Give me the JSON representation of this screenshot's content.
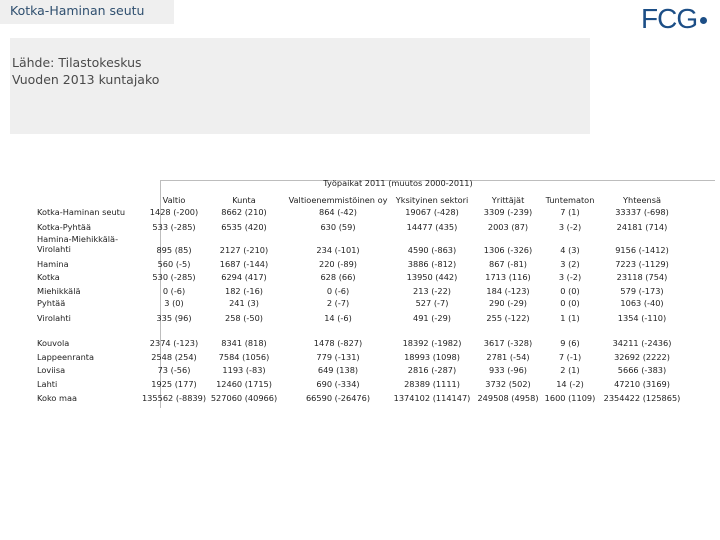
{
  "title": "Kotka-Haminan seutu",
  "logo": "FCG",
  "source": {
    "line1": "Lähde: Tilastokeskus",
    "line2": "Vuoden 2013 kuntajako"
  },
  "table": {
    "caption": "Työpaikat 2011 (muutos 2000-2011)",
    "columns": [
      "Valtio",
      "Kunta",
      "Valtioenemmistöinen oy",
      "Yksityinen sektori",
      "Yrittäjät",
      "Tuntematon",
      "Yhteensä"
    ],
    "rows": [
      {
        "label": "Kotka-Haminan seutu",
        "values": [
          "1428 (-200)",
          "8662 (210)",
          "864 (-42)",
          "19067 (-428)",
          "3309 (-239)",
          "7 (1)",
          "33337 (-698)"
        ]
      },
      {
        "label": "Kotka-Pyhtää",
        "values": [
          "533 (-285)",
          "6535 (420)",
          "630 (59)",
          "14477 (435)",
          "2003 (87)",
          "3 (-2)",
          "24181 (714)"
        ]
      },
      {
        "label": "Hamina-Miehikkälä-Virolahti",
        "values": [
          "895 (85)",
          "2127 (-210)",
          "234 (-101)",
          "4590 (-863)",
          "1306 (-326)",
          "4 (3)",
          "9156 (-1412)"
        ]
      },
      {
        "label": "Hamina",
        "values": [
          "560 (-5)",
          "1687 (-144)",
          "220 (-89)",
          "3886 (-812)",
          "867 (-81)",
          "3 (2)",
          "7223 (-1129)"
        ]
      },
      {
        "label": "Kotka",
        "values": [
          "530 (-285)",
          "6294 (417)",
          "628 (66)",
          "13950 (442)",
          "1713 (116)",
          "3 (-2)",
          "23118 (754)"
        ]
      },
      {
        "label": "Miehikkälä",
        "values": [
          "0 (-6)",
          "182 (-16)",
          "0 (-6)",
          "213 (-22)",
          "184 (-123)",
          "0 (0)",
          "579 (-173)"
        ]
      },
      {
        "label": "Pyhtää",
        "values": [
          "3 (0)",
          "241 (3)",
          "2 (-7)",
          "527 (-7)",
          "290 (-29)",
          "0 (0)",
          "1063 (-40)"
        ]
      },
      {
        "label": "Virolahti",
        "values": [
          "335 (96)",
          "258 (-50)",
          "14 (-6)",
          "491 (-29)",
          "255 (-122)",
          "1 (1)",
          "1354 (-110)"
        ]
      },
      {
        "label": "Kouvola",
        "values": [
          "2374 (-123)",
          "8341 (818)",
          "1478 (-827)",
          "18392 (-1982)",
          "3617 (-328)",
          "9 (6)",
          "34211 (-2436)"
        ]
      },
      {
        "label": "Lappeenranta",
        "values": [
          "2548 (254)",
          "7584 (1056)",
          "779 (-131)",
          "18993 (1098)",
          "2781 (-54)",
          "7 (-1)",
          "32692 (2222)"
        ]
      },
      {
        "label": "Loviisa",
        "values": [
          "73 (-56)",
          "1193 (-83)",
          "649 (138)",
          "2816 (-287)",
          "933 (-96)",
          "2 (1)",
          "5666 (-383)"
        ]
      },
      {
        "label": "Lahti",
        "values": [
          "1925 (177)",
          "12460 (1715)",
          "690 (-334)",
          "28389 (1111)",
          "3732 (502)",
          "14 (-2)",
          "47210 (3169)"
        ]
      },
      {
        "label": "Koko maa",
        "values": [
          "135562 (-8839)",
          "527060 (40966)",
          "66590 (-26476)",
          "1374102 (114147)",
          "249508 (4958)",
          "1600 (1109)",
          "2354422 (125865)"
        ]
      }
    ]
  }
}
